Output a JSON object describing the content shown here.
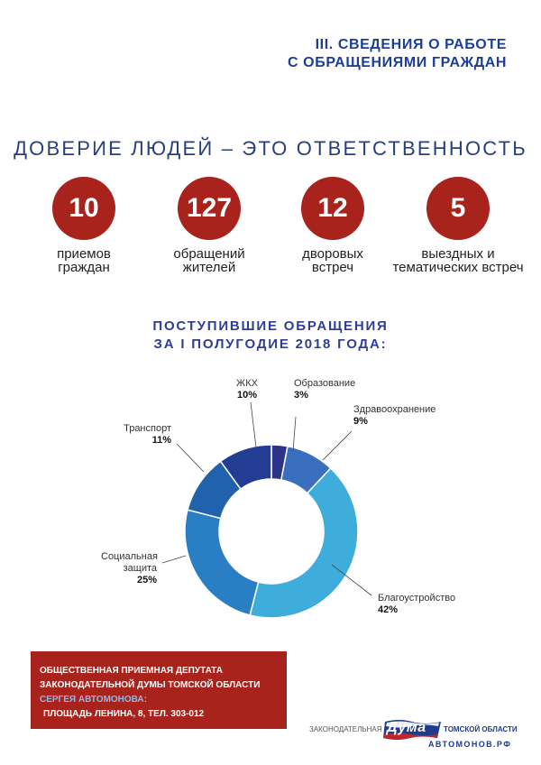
{
  "section_title": {
    "line1": "III. СВЕДЕНИЯ О РАБОТЕ",
    "line2": "С ОБРАЩЕНИЯМИ ГРАЖДАН"
  },
  "slogan": "ДОВЕРИЕ ЛЮДЕЙ – ЭТО ОТВЕТСТВЕННОСТЬ",
  "stats": [
    {
      "value": "10",
      "line1": "приемов",
      "line2": "граждан"
    },
    {
      "value": "127",
      "line1": "обращений",
      "line2": "жителей"
    },
    {
      "value": "12",
      "line1": "дворовых",
      "line2": "встреч"
    },
    {
      "value": "5",
      "line1": "выездных и",
      "line2": "тематических встреч"
    }
  ],
  "chart_title": {
    "line1": "ПОСТУПИВШИЕ  ОБРАЩЕНИЯ",
    "line2": "ЗА I ПОЛУГОДИЕ 2018 ГОДА:"
  },
  "chart_data": {
    "type": "pie",
    "donut": true,
    "categories": [
      "Образование",
      "Здравоохранение",
      "Благоустройство",
      "Социальная защита",
      "Транспорт",
      "ЖКХ"
    ],
    "values": [
      3,
      9,
      42,
      25,
      11,
      10
    ],
    "labels": {
      "education": {
        "name": "Образование",
        "pct": "3%"
      },
      "health": {
        "name": "Здравоохранение",
        "pct": "9%"
      },
      "improvement": {
        "name": "Благоустройство",
        "pct": "42%"
      },
      "social_line1": "Социальная",
      "social_line2": "защита",
      "social_pct": "25%",
      "transport": {
        "name": "Транспорт",
        "pct": "11%"
      },
      "housing": {
        "name": "ЖКХ",
        "pct": "10%"
      }
    },
    "colors": [
      "#2b3486",
      "#3a6fc0",
      "#3eaddc",
      "#2a7fc4",
      "#2162ad",
      "#233d94"
    ]
  },
  "info_box": {
    "line1": "ОБЩЕСТВЕННАЯ ПРИЕМНАЯ ДЕПУТАТА",
    "line2": "ЗАКОНОДАТЕЛЬНОЙ ДУМЫ ТОМСКОЙ ОБЛАСТИ",
    "line3": "СЕРГЕЯ АВТОМОНОВА:",
    "line4": "ПЛОЩАДЬ ЛЕНИНА, 8, ТЕЛ. 303-012"
  },
  "logo": {
    "left": "ЗАКОНОДАТЕЛЬНАЯ",
    "badge": "Дума",
    "right": "ТОМСКОЙ ОБЛАСТИ",
    "site": "АВТОМОНОВ.РФ"
  }
}
